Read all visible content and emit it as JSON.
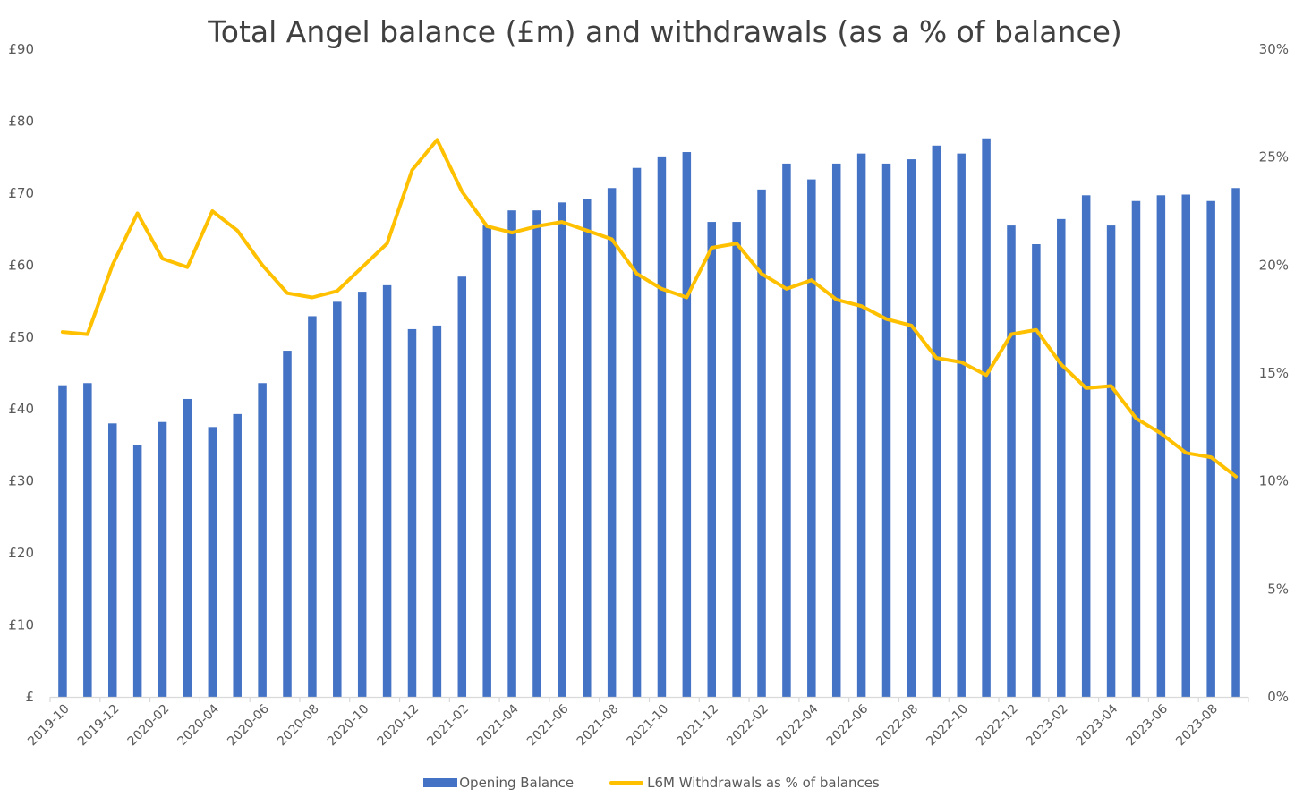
{
  "chart_data": {
    "type": "bar+line",
    "title": "Total Angel balance (£m) and withdrawals (as a % of balance)",
    "categories": [
      "2019-10",
      "2019-11",
      "2019-12",
      "2020-01",
      "2020-02",
      "2020-03",
      "2020-04",
      "2020-05",
      "2020-06",
      "2020-07",
      "2020-08",
      "2020-09",
      "2020-10",
      "2020-11",
      "2020-12",
      "2021-01",
      "2021-02",
      "2021-03",
      "2021-04",
      "2021-05",
      "2021-06",
      "2021-07",
      "2021-08",
      "2021-09",
      "2021-10",
      "2021-11",
      "2021-12",
      "2022-01",
      "2022-02",
      "2022-03",
      "2022-04",
      "2022-05",
      "2022-06",
      "2022-07",
      "2022-08",
      "2022-09",
      "2022-10",
      "2022-11",
      "2022-12",
      "2023-01",
      "2023-02",
      "2023-03",
      "2023-04",
      "2023-05",
      "2023-06",
      "2023-07",
      "2023-08",
      "2023-09"
    ],
    "x_tick_labels": [
      "2019-10",
      "2019-12",
      "2020-02",
      "2020-04",
      "2020-06",
      "2020-08",
      "2020-10",
      "2020-12",
      "2021-02",
      "2021-04",
      "2021-06",
      "2021-08",
      "2021-10",
      "2021-12",
      "2022-02",
      "2022-04",
      "2022-06",
      "2022-08",
      "2022-10",
      "2022-12",
      "2023-02",
      "2023-04",
      "2023-06",
      "2023-08"
    ],
    "series": [
      {
        "name": "Opening Balance",
        "type": "bar",
        "axis": "left",
        "color": "#4472C4",
        "values": [
          43.3,
          43.6,
          38.0,
          35.0,
          38.2,
          41.4,
          37.5,
          39.3,
          43.6,
          48.1,
          52.9,
          54.9,
          56.3,
          57.2,
          51.1,
          51.6,
          58.4,
          65.5,
          67.6,
          67.6,
          68.7,
          69.2,
          70.7,
          73.5,
          75.1,
          75.7,
          66.0,
          66.0,
          70.5,
          74.1,
          71.9,
          74.1,
          75.5,
          74.1,
          74.7,
          76.6,
          75.5,
          77.6,
          65.5,
          62.9,
          66.4,
          69.7,
          65.5,
          68.9,
          69.7,
          69.8,
          68.9,
          70.7
        ]
      },
      {
        "name": "L6M Withdrawals as % of balances",
        "type": "line",
        "axis": "right",
        "color": "#FFC000",
        "values": [
          16.9,
          16.8,
          20.0,
          22.4,
          20.3,
          19.9,
          22.5,
          21.6,
          20.0,
          18.7,
          18.5,
          18.8,
          19.9,
          21.0,
          24.4,
          25.8,
          23.4,
          21.8,
          21.5,
          21.8,
          22.0,
          21.6,
          21.2,
          19.6,
          18.9,
          18.5,
          20.8,
          21.0,
          19.6,
          18.9,
          19.3,
          18.4,
          18.1,
          17.5,
          17.2,
          15.7,
          15.5,
          14.9,
          16.8,
          17.0,
          15.4,
          14.3,
          14.4,
          12.9,
          12.2,
          11.3,
          11.1,
          10.2
        ]
      }
    ],
    "y_left": {
      "label": "",
      "ylim": [
        0,
        90
      ],
      "ticks": [
        0,
        10,
        20,
        30,
        40,
        50,
        60,
        70,
        80,
        90
      ],
      "tick_labels": [
        "£",
        "£10",
        "£20",
        "£30",
        "£40",
        "£50",
        "£60",
        "£70",
        "£80",
        "£90"
      ]
    },
    "y_right": {
      "label": "",
      "ylim": [
        0,
        30
      ],
      "ticks": [
        0,
        5,
        10,
        15,
        20,
        25,
        30
      ],
      "tick_labels": [
        "0%",
        "5%",
        "10%",
        "15%",
        "20%",
        "25%",
        "30%"
      ]
    },
    "xlabel": "",
    "grid": false,
    "legend_position": "bottom",
    "legend": [
      "Opening Balance",
      "L6M Withdrawals as % of balances"
    ]
  }
}
